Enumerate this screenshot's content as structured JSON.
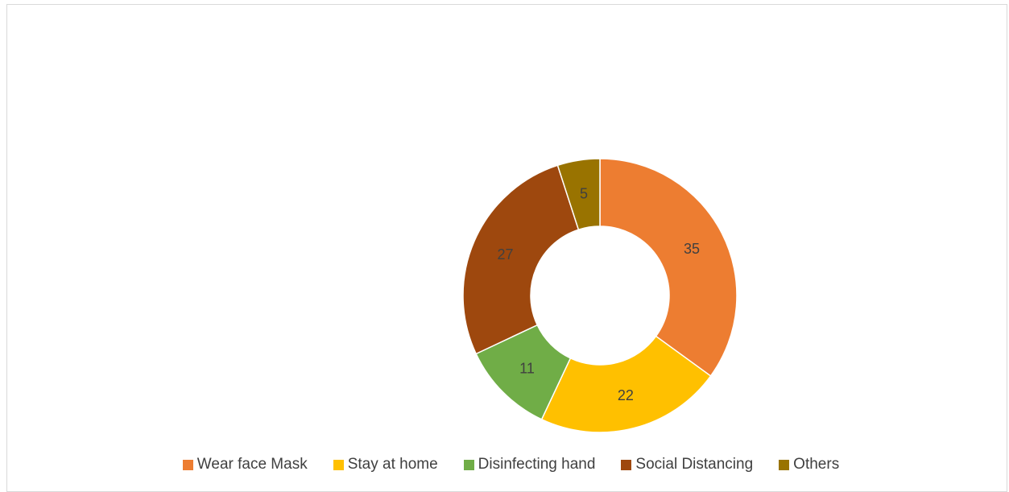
{
  "chart_data": {
    "type": "pie",
    "subtype": "doughnut",
    "categories": [
      "Wear face Mask",
      "Stay at home",
      "Disinfecting hand",
      "Social Distancing",
      "Others"
    ],
    "values": [
      35,
      22,
      11,
      27,
      5
    ],
    "data_labels": [
      "35",
      "22",
      "11",
      "27",
      "5"
    ],
    "colors": [
      "#ED7D31",
      "#FFC000",
      "#70AD47",
      "#9E480E",
      "#997300"
    ],
    "legend_position": "bottom",
    "title": ""
  }
}
